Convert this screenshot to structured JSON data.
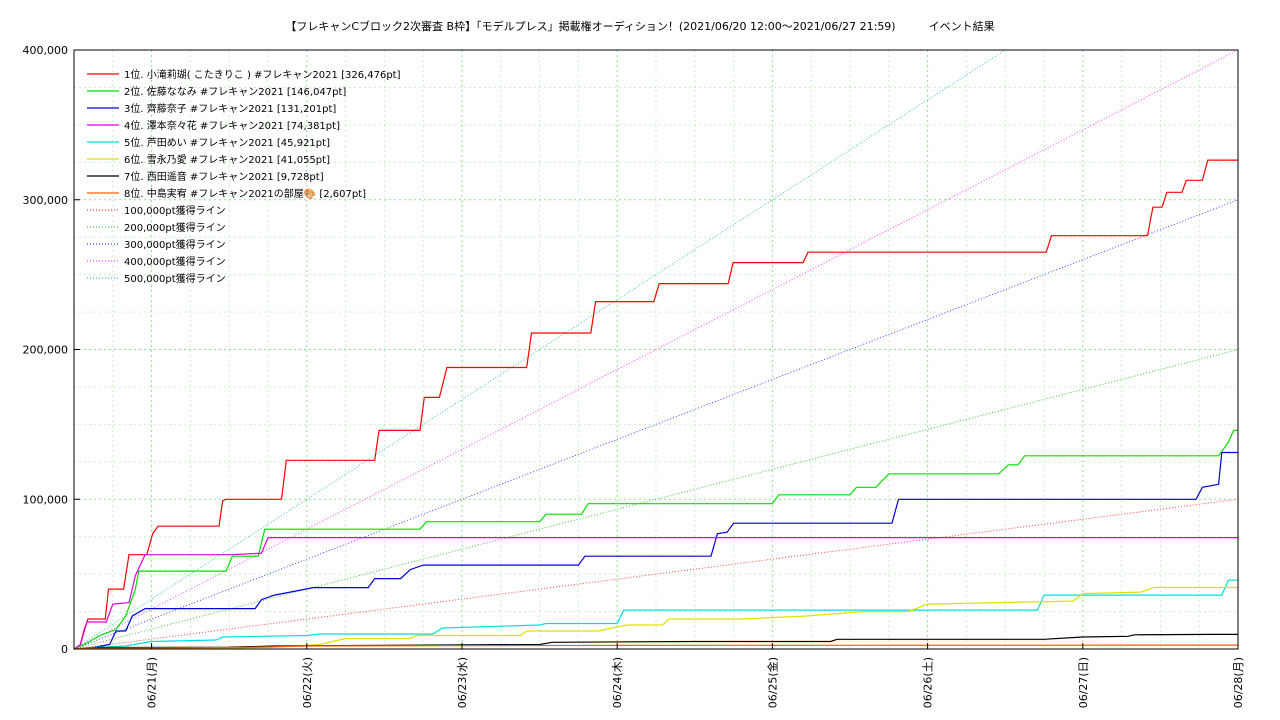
{
  "chart_data": {
    "type": "line",
    "title": "【フレキャンCブロック2次審査 B枠】「モデルプレス」掲載権オーディション！(2021/06/20 12:00〜2021/06/27 21:59)　　　イベント結果",
    "xlabel": "",
    "ylabel": "",
    "x_range": [
      "2021-06-20 12:00",
      "2021-06-28 00:00"
    ],
    "ylim": [
      0,
      400000
    ],
    "grid": true,
    "legend_position": "top-left",
    "y_ticks": [
      {
        "value": 0,
        "label": "0"
      },
      {
        "value": 100000,
        "label": "100,000"
      },
      {
        "value": 200000,
        "label": "200,000"
      },
      {
        "value": 300000,
        "label": "300,000"
      },
      {
        "value": 400000,
        "label": "400,000"
      }
    ],
    "x_ticks": [
      {
        "value": "2021-06-21 00:00",
        "label": "06/21(月)"
      },
      {
        "value": "2021-06-22 00:00",
        "label": "06/22(火)"
      },
      {
        "value": "2021-06-23 00:00",
        "label": "06/23(水)"
      },
      {
        "value": "2021-06-24 00:00",
        "label": "06/24(木)"
      },
      {
        "value": "2021-06-25 00:00",
        "label": "06/25(金)"
      },
      {
        "value": "2021-06-26 00:00",
        "label": "06/26(土)"
      },
      {
        "value": "2021-06-27 00:00",
        "label": "06/27(日)"
      },
      {
        "value": "2021-06-28 00:00",
        "label": "06/28(月)"
      }
    ],
    "series": [
      {
        "name": "1位. 小滝莉瑚( こたきりこ ) #フレキャン2021 [326,476pt]",
        "color": "#ff0000",
        "points": [
          [
            "2021-06-20 12:00",
            0
          ],
          [
            "2021-06-20 12:55",
            2000
          ],
          [
            "2021-06-20 13:35",
            13000
          ],
          [
            "2021-06-20 14:10",
            20000
          ],
          [
            "2021-06-20 16:50",
            20000
          ],
          [
            "2021-06-20 17:20",
            40000
          ],
          [
            "2021-06-20 19:40",
            40000
          ],
          [
            "2021-06-20 20:30",
            63000
          ],
          [
            "2021-06-20 23:15",
            63000
          ],
          [
            "2021-06-21 00:10",
            77000
          ],
          [
            "2021-06-21 01:00",
            82000
          ],
          [
            "2021-06-21 10:25",
            82000
          ],
          [
            "2021-06-21 11:00",
            99000
          ],
          [
            "2021-06-21 11:30",
            100000
          ],
          [
            "2021-06-21 20:05",
            100000
          ],
          [
            "2021-06-21 20:50",
            126000
          ],
          [
            "2021-06-22 10:30",
            126000
          ],
          [
            "2021-06-22 11:10",
            146000
          ],
          [
            "2021-06-22 17:30",
            146000
          ],
          [
            "2021-06-22 18:10",
            168000
          ],
          [
            "2021-06-22 20:30",
            168000
          ],
          [
            "2021-06-22 21:40",
            188000
          ],
          [
            "2021-06-23 10:00",
            188000
          ],
          [
            "2021-06-23 10:45",
            211000
          ],
          [
            "2021-06-23 19:55",
            211000
          ],
          [
            "2021-06-23 20:40",
            232000
          ],
          [
            "2021-06-24 05:40",
            232000
          ],
          [
            "2021-06-24 06:30",
            244000
          ],
          [
            "2021-06-24 17:10",
            244000
          ],
          [
            "2021-06-24 17:55",
            258000
          ],
          [
            "2021-06-25 04:45",
            258000
          ],
          [
            "2021-06-25 05:30",
            265000
          ],
          [
            "2021-06-26 18:20",
            265000
          ],
          [
            "2021-06-26 19:10",
            276000
          ],
          [
            "2021-06-27 10:00",
            276000
          ],
          [
            "2021-06-27 10:50",
            295000
          ],
          [
            "2021-06-27 12:15",
            295000
          ],
          [
            "2021-06-27 13:00",
            305000
          ],
          [
            "2021-06-27 15:20",
            305000
          ],
          [
            "2021-06-27 16:00",
            313000
          ],
          [
            "2021-06-27 18:30",
            313000
          ],
          [
            "2021-06-27 19:20",
            326476
          ],
          [
            "2021-06-28 00:00",
            326476
          ]
        ]
      },
      {
        "name": "2位. 佐藤ななみ #フレキャン2021 [146,047pt]",
        "color": "#00e000",
        "points": [
          [
            "2021-06-20 12:00",
            0
          ],
          [
            "2021-06-20 14:00",
            4000
          ],
          [
            "2021-06-20 16:00",
            9000
          ],
          [
            "2021-06-20 18:30",
            13000
          ],
          [
            "2021-06-20 20:00",
            22000
          ],
          [
            "2021-06-20 21:30",
            40000
          ],
          [
            "2021-06-20 22:00",
            52000
          ],
          [
            "2021-06-21 11:30",
            52000
          ],
          [
            "2021-06-21 12:30",
            62000
          ],
          [
            "2021-06-21 16:30",
            62000
          ],
          [
            "2021-06-21 17:30",
            80000
          ],
          [
            "2021-06-22 17:30",
            80000
          ],
          [
            "2021-06-22 18:30",
            85000
          ],
          [
            "2021-06-23 12:00",
            85000
          ],
          [
            "2021-06-23 13:00",
            90000
          ],
          [
            "2021-06-23 18:30",
            90000
          ],
          [
            "2021-06-23 19:30",
            97000
          ],
          [
            "2021-06-25 00:00",
            97000
          ],
          [
            "2021-06-25 01:00",
            103000
          ],
          [
            "2021-06-25 12:00",
            103000
          ],
          [
            "2021-06-25 13:00",
            108000
          ],
          [
            "2021-06-25 16:00",
            108000
          ],
          [
            "2021-06-25 18:00",
            117000
          ],
          [
            "2021-06-26 11:00",
            117000
          ],
          [
            "2021-06-26 12:30",
            123000
          ],
          [
            "2021-06-26 14:00",
            123000
          ],
          [
            "2021-06-26 15:00",
            129000
          ],
          [
            "2021-06-27 21:00",
            129000
          ],
          [
            "2021-06-27 22:30",
            138000
          ],
          [
            "2021-06-27 23:20",
            146047
          ],
          [
            "2021-06-28 00:00",
            146047
          ]
        ]
      },
      {
        "name": "3位. 齊藤奈子 #フレキャン2021 [131,201pt]",
        "color": "#0000e0",
        "points": [
          [
            "2021-06-20 12:00",
            0
          ],
          [
            "2021-06-20 15:00",
            1000
          ],
          [
            "2021-06-20 17:30",
            3000
          ],
          [
            "2021-06-20 18:30",
            12000
          ],
          [
            "2021-06-20 20:00",
            12000
          ],
          [
            "2021-06-20 21:00",
            22000
          ],
          [
            "2021-06-20 23:00",
            27000
          ],
          [
            "2021-06-21 16:00",
            27000
          ],
          [
            "2021-06-21 17:00",
            33000
          ],
          [
            "2021-06-21 19:00",
            36000
          ],
          [
            "2021-06-22 01:00",
            41000
          ],
          [
            "2021-06-22 09:30",
            41000
          ],
          [
            "2021-06-22 10:30",
            47000
          ],
          [
            "2021-06-22 14:30",
            47000
          ],
          [
            "2021-06-22 16:00",
            53000
          ],
          [
            "2021-06-22 18:00",
            56000
          ],
          [
            "2021-06-23 18:00",
            56000
          ],
          [
            "2021-06-23 19:00",
            62000
          ],
          [
            "2021-06-24 14:30",
            62000
          ],
          [
            "2021-06-24 15:30",
            77000
          ],
          [
            "2021-06-24 17:00",
            78000
          ],
          [
            "2021-06-24 18:00",
            84000
          ],
          [
            "2021-06-25 18:30",
            84000
          ],
          [
            "2021-06-25 19:30",
            100000
          ],
          [
            "2021-06-27 17:30",
            100000
          ],
          [
            "2021-06-27 18:30",
            108000
          ],
          [
            "2021-06-27 21:00",
            110000
          ],
          [
            "2021-06-27 21:30",
            131201
          ],
          [
            "2021-06-28 00:00",
            131201
          ]
        ]
      },
      {
        "name": "4位. 澤本奈々花 #フレキャン2021 [74,381pt]",
        "color": "#e000e0",
        "points": [
          [
            "2021-06-20 12:00",
            0
          ],
          [
            "2021-06-20 13:00",
            3000
          ],
          [
            "2021-06-20 14:00",
            18000
          ],
          [
            "2021-06-20 17:00",
            18000
          ],
          [
            "2021-06-20 18:00",
            30000
          ],
          [
            "2021-06-20 20:30",
            31000
          ],
          [
            "2021-06-20 21:30",
            49000
          ],
          [
            "2021-06-20 23:00",
            63000
          ],
          [
            "2021-06-21 12:30",
            63000
          ],
          [
            "2021-06-21 17:00",
            64000
          ],
          [
            "2021-06-21 18:00",
            74381
          ],
          [
            "2021-06-28 00:00",
            74381
          ]
        ]
      },
      {
        "name": "5位. 芦田めい #フレキャン2021 [45,921pt]",
        "color": "#00e0e0",
        "points": [
          [
            "2021-06-20 12:00",
            0
          ],
          [
            "2021-06-20 15:00",
            1000
          ],
          [
            "2021-06-20 20:00",
            2000
          ],
          [
            "2021-06-21 00:00",
            5000
          ],
          [
            "2021-06-21 10:00",
            6000
          ],
          [
            "2021-06-21 11:00",
            8000
          ],
          [
            "2021-06-22 00:00",
            9000
          ],
          [
            "2021-06-22 02:00",
            10000
          ],
          [
            "2021-06-22 19:30",
            10000
          ],
          [
            "2021-06-22 21:00",
            14000
          ],
          [
            "2021-06-23 12:00",
            16000
          ],
          [
            "2021-06-23 13:00",
            17000
          ],
          [
            "2021-06-24 00:00",
            17000
          ],
          [
            "2021-06-24 01:00",
            26000
          ],
          [
            "2021-06-26 17:00",
            26000
          ],
          [
            "2021-06-26 18:00",
            36000
          ],
          [
            "2021-06-27 21:30",
            36000
          ],
          [
            "2021-06-27 22:30",
            45921
          ],
          [
            "2021-06-28 00:00",
            45921
          ]
        ]
      },
      {
        "name": "6位. 雪永乃愛 #フレキャン2021 [41,055pt]",
        "color": "#e0e000",
        "points": [
          [
            "2021-06-20 12:00",
            0
          ],
          [
            "2021-06-21 18:00",
            1000
          ],
          [
            "2021-06-22 02:00",
            3000
          ],
          [
            "2021-06-22 06:00",
            7000
          ],
          [
            "2021-06-22 16:00",
            7000
          ],
          [
            "2021-06-22 17:00",
            9000
          ],
          [
            "2021-06-23 09:00",
            9000
          ],
          [
            "2021-06-23 10:00",
            12000
          ],
          [
            "2021-06-23 21:00",
            12000
          ],
          [
            "2021-06-24 01:30",
            16000
          ],
          [
            "2021-06-24 07:00",
            16000
          ],
          [
            "2021-06-24 08:00",
            20000
          ],
          [
            "2021-06-24 19:00",
            20000
          ],
          [
            "2021-06-25 05:00",
            22000
          ],
          [
            "2021-06-25 14:00",
            25000
          ],
          [
            "2021-06-25 21:00",
            25000
          ],
          [
            "2021-06-26 00:00",
            30000
          ],
          [
            "2021-06-26 22:30",
            32000
          ],
          [
            "2021-06-27 00:00",
            37000
          ],
          [
            "2021-06-27 09:00",
            38000
          ],
          [
            "2021-06-27 11:00",
            41055
          ],
          [
            "2021-06-28 00:00",
            41055
          ]
        ]
      },
      {
        "name": "7位. 西田遥音 #フレキャン2021 [9,728pt]",
        "color": "#000000",
        "points": [
          [
            "2021-06-20 12:00",
            0
          ],
          [
            "2021-06-20 16:00",
            1000
          ],
          [
            "2021-06-21 12:00",
            1200
          ],
          [
            "2021-06-21 19:00",
            2000
          ],
          [
            "2021-06-22 12:00",
            2500
          ],
          [
            "2021-06-23 12:00",
            3000
          ],
          [
            "2021-06-23 14:00",
            4500
          ],
          [
            "2021-06-24 12:00",
            5000
          ],
          [
            "2021-06-25 09:00",
            5000
          ],
          [
            "2021-06-25 10:00",
            6500
          ],
          [
            "2021-06-26 18:00",
            6500
          ],
          [
            "2021-06-27 00:00",
            8000
          ],
          [
            "2021-06-27 07:00",
            8500
          ],
          [
            "2021-06-27 08:00",
            9500
          ],
          [
            "2021-06-27 20:00",
            9728
          ],
          [
            "2021-06-28 00:00",
            9728
          ]
        ]
      },
      {
        "name": "8位. 中島実宥 #フレキャン2021の部屋🎨 [2,607pt]",
        "color": "#ff6000",
        "points": [
          [
            "2021-06-20 12:00",
            0
          ],
          [
            "2021-06-20 13:00",
            500
          ],
          [
            "2021-06-21 14:00",
            1000
          ],
          [
            "2021-06-22 00:00",
            2000
          ],
          [
            "2021-06-23 00:00",
            2300
          ],
          [
            "2021-06-24 00:00",
            2400
          ],
          [
            "2021-06-25 12:00",
            2500
          ],
          [
            "2021-06-28 00:00",
            2607
          ]
        ]
      }
    ],
    "reference_lines": [
      {
        "name": "100,000pt獲得ライン",
        "color": "#ff4040",
        "target": 100000
      },
      {
        "name": "200,000pt獲得ライン",
        "color": "#40c040",
        "target": 200000
      },
      {
        "name": "300,000pt獲得ライン",
        "color": "#4040ff",
        "target": 300000
      },
      {
        "name": "400,000pt獲得ライン",
        "color": "#ff40ff",
        "target": 400000
      },
      {
        "name": "500,000pt獲得ライン",
        "color": "#40c0c0",
        "target": 500000
      }
    ]
  }
}
